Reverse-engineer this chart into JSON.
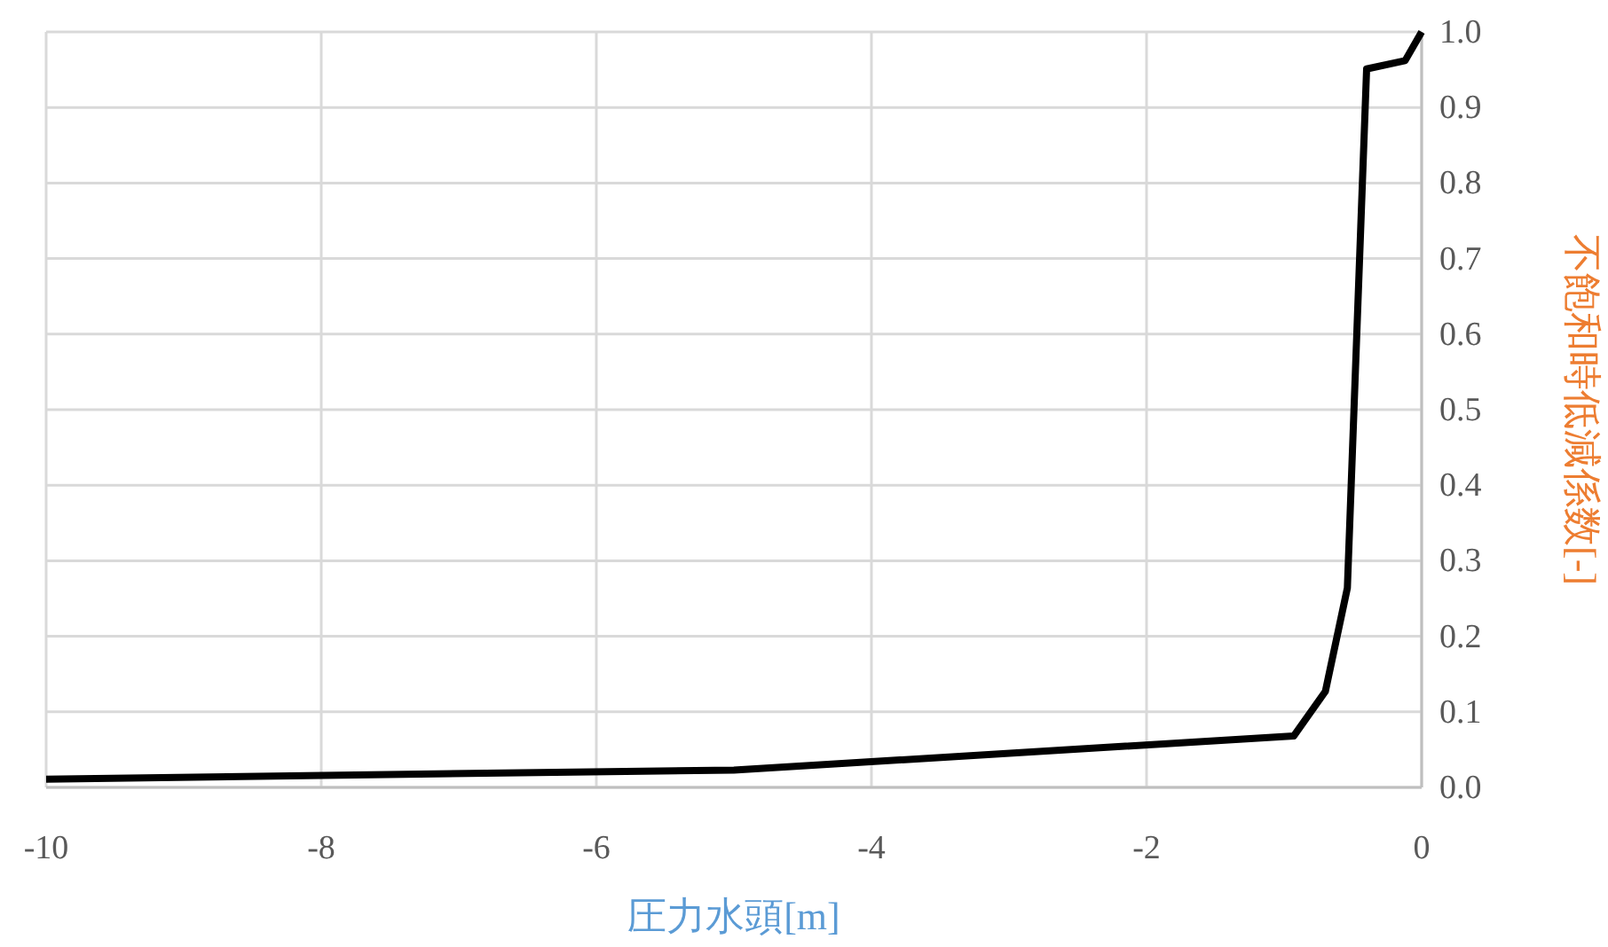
{
  "chart_data": {
    "type": "line",
    "xlabel": "圧力水頭[m]",
    "ylabel": "不飽和時低減係数[-]",
    "x": [
      -10,
      -5,
      -0.93,
      -0.7,
      -0.54,
      -0.4,
      -0.12,
      0
    ],
    "series": [
      {
        "color": "#000000",
        "values": [
          0.011,
          0.023,
          0.068,
          0.127,
          0.264,
          0.951,
          0.962,
          1.0
        ]
      }
    ],
    "xlim": [
      -10,
      0
    ],
    "xticks": [
      -10,
      -8,
      -6,
      -4,
      -2,
      0
    ],
    "ylim": [
      0,
      1
    ],
    "yticks": [
      {
        "value": 0,
        "label": "0.0"
      },
      {
        "value": 0.1,
        "label": "0.1"
      },
      {
        "value": 0.2,
        "label": "0.2"
      },
      {
        "value": 0.3,
        "label": "0.3"
      },
      {
        "value": 0.4,
        "label": "0.4"
      },
      {
        "value": 0.5,
        "label": "0.5"
      },
      {
        "value": 0.6,
        "label": "0.6"
      },
      {
        "value": 0.7,
        "label": "0.7"
      },
      {
        "value": 0.8,
        "label": "0.8"
      },
      {
        "value": 0.9,
        "label": "0.9"
      },
      {
        "value": 1,
        "label": "1.0"
      }
    ],
    "grid": true,
    "line_style": "solid"
  }
}
